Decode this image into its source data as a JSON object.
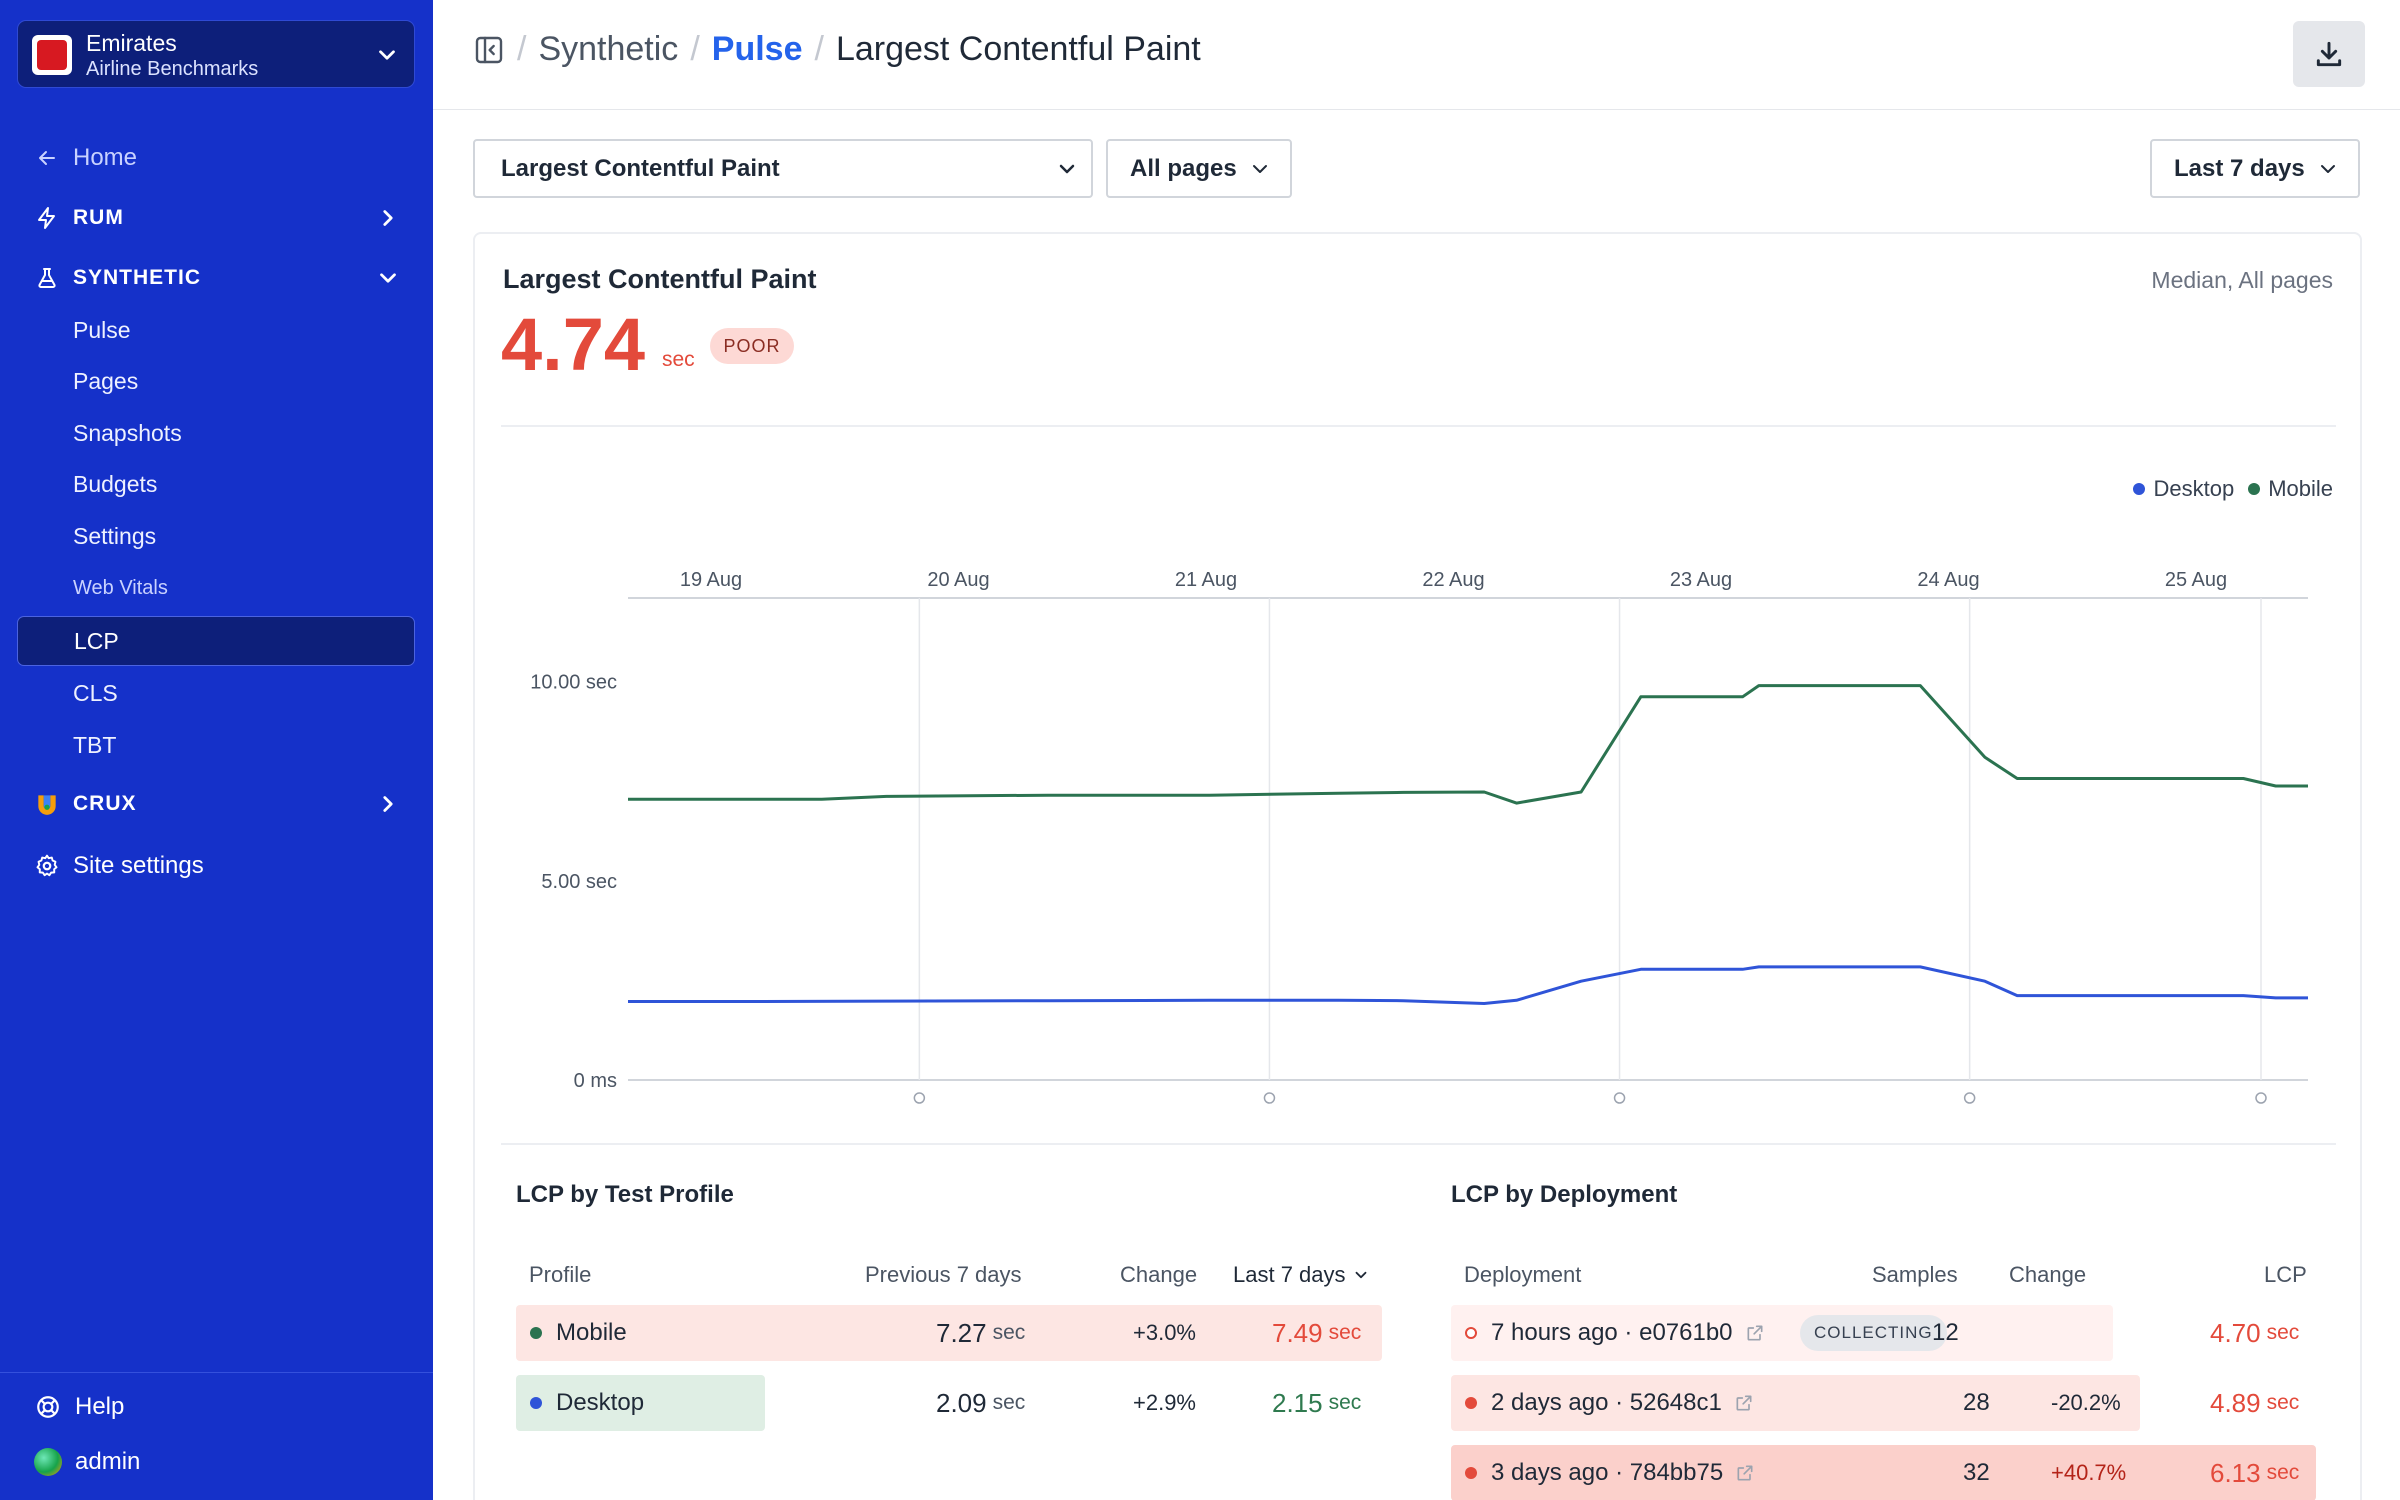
{
  "org": {
    "name": "Emirates",
    "subtitle": "Airline Benchmarks"
  },
  "nav": {
    "home": "Home",
    "rum": "RUM",
    "synthetic": "SYNTHETIC",
    "synthetic_items": [
      "Pulse",
      "Pages",
      "Snapshots",
      "Budgets",
      "Settings"
    ],
    "web_vitals_label": "Web Vitals",
    "vitals_items": [
      "LCP",
      "CLS",
      "TBT"
    ],
    "crux": "CRUX",
    "site_settings": "Site settings",
    "help": "Help",
    "user": "admin",
    "active_item": "LCP"
  },
  "breadcrumb": [
    "Synthetic",
    "Pulse",
    "Largest Contentful Paint"
  ],
  "filters": {
    "metric": "Largest Contentful Paint",
    "pages": "All pages",
    "range": "Last 7 days"
  },
  "card": {
    "title": "Largest Contentful Paint",
    "meta": "Median, All pages",
    "value": "4.74",
    "unit": "sec",
    "badge": "POOR"
  },
  "colors": {
    "desktop": "#2f54d8",
    "mobile": "#2b7350",
    "poor": "#e34a3b",
    "sidebar": "#1531c9"
  },
  "chart_data": {
    "type": "line",
    "x_labels": [
      "19 Aug",
      "20 Aug",
      "21 Aug",
      "22 Aug",
      "23 Aug",
      "24 Aug",
      "25 Aug"
    ],
    "y_labels": [
      "10.00 sec",
      "5.00 sec",
      "0 ms"
    ],
    "ylim": [
      0,
      12.1
    ],
    "y_unit": "sec",
    "legend_position": "top-right",
    "grid": "vertical",
    "series": [
      {
        "name": "Desktop",
        "color": "#2f54d8",
        "points": [
          [
            0,
            1.97
          ],
          [
            0.84,
            1.97
          ],
          [
            1.6,
            1.98
          ],
          [
            2.6,
            1.99
          ],
          [
            3.6,
            2.0
          ],
          [
            4.4,
            2.0
          ],
          [
            4.8,
            1.99
          ],
          [
            5.3,
            1.92
          ],
          [
            5.5,
            2.0
          ],
          [
            5.9,
            2.48
          ],
          [
            6.27,
            2.78
          ],
          [
            6.9,
            2.78
          ],
          [
            7.0,
            2.84
          ],
          [
            8.0,
            2.84
          ],
          [
            8.4,
            2.48
          ],
          [
            8.6,
            2.12
          ],
          [
            9.5,
            2.12
          ],
          [
            10.0,
            2.12
          ],
          [
            10.2,
            2.06
          ],
          [
            10.4,
            2.06
          ]
        ]
      },
      {
        "name": "Mobile",
        "color": "#2b7350",
        "points": [
          [
            0,
            7.05
          ],
          [
            1.2,
            7.05
          ],
          [
            1.6,
            7.12
          ],
          [
            2.6,
            7.15
          ],
          [
            3.6,
            7.15
          ],
          [
            4.4,
            7.2
          ],
          [
            4.8,
            7.22
          ],
          [
            5.3,
            7.23
          ],
          [
            5.5,
            6.95
          ],
          [
            5.9,
            7.23
          ],
          [
            6.27,
            9.62
          ],
          [
            6.9,
            9.62
          ],
          [
            7.0,
            9.9
          ],
          [
            8.0,
            9.9
          ],
          [
            8.4,
            8.1
          ],
          [
            8.6,
            7.57
          ],
          [
            9.5,
            7.57
          ],
          [
            10.0,
            7.57
          ],
          [
            10.2,
            7.38
          ],
          [
            10.4,
            7.38
          ]
        ]
      }
    ]
  },
  "profile_table": {
    "title": "LCP by Test Profile",
    "headers": [
      "Profile",
      "Previous 7 days",
      "Change",
      "Last 7 days"
    ],
    "rows": [
      {
        "profile": "Mobile",
        "prev": "7.27",
        "change": "+3.0%",
        "last": "7.49",
        "unit": "sec",
        "status": "poor"
      },
      {
        "profile": "Desktop",
        "prev": "2.09",
        "change": "+2.9%",
        "last": "2.15",
        "unit": "sec",
        "status": "good"
      }
    ]
  },
  "deploy_table": {
    "title": "LCP by Deployment",
    "headers": [
      "Deployment",
      "Samples",
      "Change",
      "LCP"
    ],
    "rows": [
      {
        "deployment": "7 hours ago · e0761b0",
        "chip": "COLLECTING",
        "samples": "12",
        "change": "",
        "lcp": "4.70",
        "unit": "sec"
      },
      {
        "deployment": "2 days ago · 52648c1",
        "chip": "",
        "samples": "28",
        "change": "-20.2%",
        "lcp": "4.89",
        "unit": "sec"
      },
      {
        "deployment": "3 days ago · 784bb75",
        "chip": "",
        "samples": "32",
        "change": "+40.7%",
        "lcp": "6.13",
        "unit": "sec"
      }
    ]
  }
}
